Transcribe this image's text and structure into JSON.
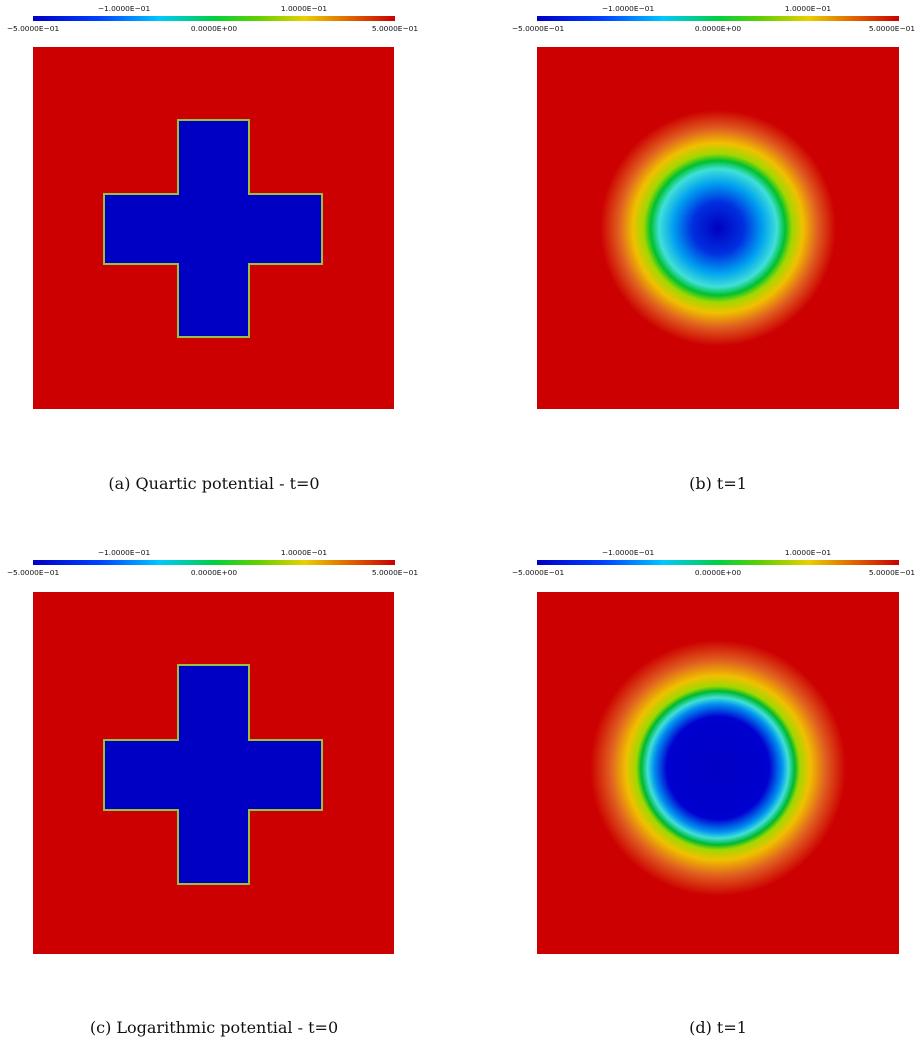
{
  "colorbar": {
    "ticks_top": [
      "−1.0000E−01",
      "1.0000E−01"
    ],
    "ticks_bottom": [
      "−5.0000E−01",
      "0.0000E+00",
      "5.0000E−01"
    ],
    "range": [
      -0.5,
      0.5
    ],
    "colormap": "rainbow (blue-cyan-green-yellow-red)"
  },
  "colors": {
    "high": "#cc0000",
    "low": "#0000c4"
  },
  "panels": [
    {
      "label": "(a)",
      "caption": "(a) Quartic potential - t=0",
      "shape": "cross"
    },
    {
      "label": "(b)",
      "caption": "(b) t=1",
      "shape": "disk-diffuse"
    },
    {
      "label": "(c)",
      "caption": "(c) Logarithmic potential - t=0",
      "shape": "cross"
    },
    {
      "label": "(d)",
      "caption": "(d) t=1",
      "shape": "disk-sharp"
    }
  ]
}
